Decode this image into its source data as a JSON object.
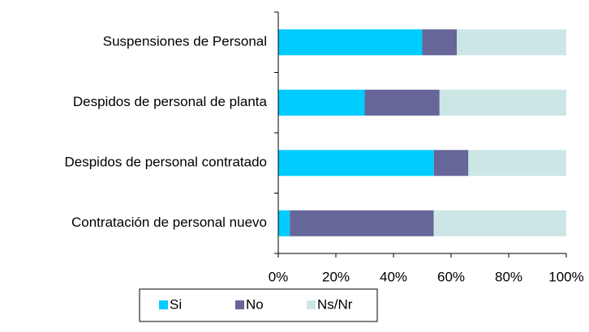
{
  "chart_data": {
    "type": "stacked_barh",
    "categories": [
      "Suspensiones de Personal",
      "Despidos de personal de planta",
      "Despidos de personal contratado",
      "Contratación de personal nuevo"
    ],
    "series": [
      {
        "name": "Si",
        "color": "#00ccff",
        "values": [
          50,
          30,
          54,
          4
        ]
      },
      {
        "name": "No",
        "color": "#666699",
        "values": [
          12,
          26,
          12,
          50
        ]
      },
      {
        "name": "Ns/Nr",
        "color": "#cce6e6",
        "values": [
          38,
          44,
          34,
          46
        ]
      }
    ],
    "xlim": [
      0,
      100
    ],
    "xticks": [
      {
        "value": 0,
        "label": "0%"
      },
      {
        "value": 20,
        "label": "20%"
      },
      {
        "value": 40,
        "label": "40%"
      },
      {
        "value": 60,
        "label": "60%"
      },
      {
        "value": 80,
        "label": "80%"
      },
      {
        "value": 100,
        "label": "100%"
      }
    ],
    "legend": "bottom"
  }
}
